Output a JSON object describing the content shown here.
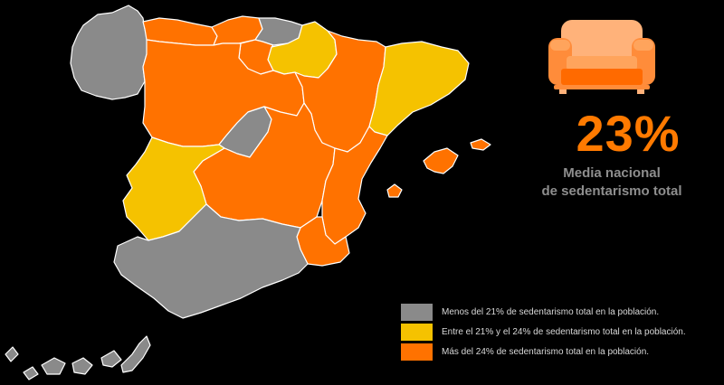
{
  "headline": {
    "value": "23%",
    "caption_line1": "Media nacional",
    "caption_line2": "de sedentarismo total"
  },
  "icon": "sofa-icon",
  "colors": {
    "gray": "#8a8a8a",
    "yellow": "#f5c200",
    "orange": "#ff7200",
    "background": "#000000",
    "accent_text": "#ff7a00"
  },
  "legend": [
    {
      "label": "Menos del 21% de sedentarismo total en la población.",
      "color": "#8a8a8a"
    },
    {
      "label": "Entre el 21% y el 24% de sedentarismo total en la población.",
      "color": "#f5c200"
    },
    {
      "label": "Más del 24% de sedentarismo total en la población.",
      "color": "#ff7200"
    }
  ]
}
